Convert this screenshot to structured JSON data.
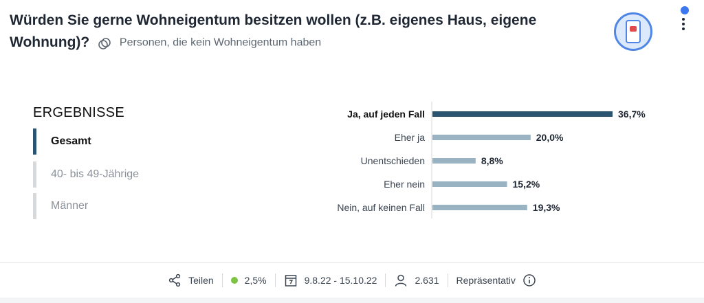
{
  "header": {
    "question": "Würden Sie gerne Wohneigentum besitzen wollen (z.B. eigenes Haus, eigene Wohnung)?",
    "filter_text": "Personen, die kein Wohneigentum haben"
  },
  "results": {
    "heading": "ERGEBNISSE",
    "segments": [
      {
        "label": "Gesamt",
        "active": true
      },
      {
        "label": "40- bis 49-Jährige",
        "active": false
      },
      {
        "label": "Männer",
        "active": false
      }
    ]
  },
  "chart_data": {
    "type": "bar",
    "orientation": "horizontal",
    "categories": [
      "Ja, auf jeden Fall",
      "Eher ja",
      "Unentschieden",
      "Eher nein",
      "Nein, auf keinen Fall"
    ],
    "values": [
      36.7,
      20.0,
      8.8,
      15.2,
      19.3
    ],
    "value_labels": [
      "36,7%",
      "20,0%",
      "8,8%",
      "15,2%",
      "19,3%"
    ],
    "highlight_index": 0,
    "colors": {
      "highlight": "#2a5470",
      "default": "#9ab3c2"
    },
    "xlim": [
      0,
      36.7
    ]
  },
  "footer": {
    "share_label": "Teilen",
    "error_margin": "2,5%",
    "error_color": "#7cc243",
    "date_range": "9.8.22 - 15.10.22",
    "respondents": "2.631",
    "representative_label": "Repräsentativ"
  },
  "icons": {
    "filter": "filter-circles-icon",
    "badge": "phone-badge-icon",
    "share": "share-icon",
    "calendar": "calendar-icon",
    "person": "person-icon",
    "info": "info-icon"
  }
}
